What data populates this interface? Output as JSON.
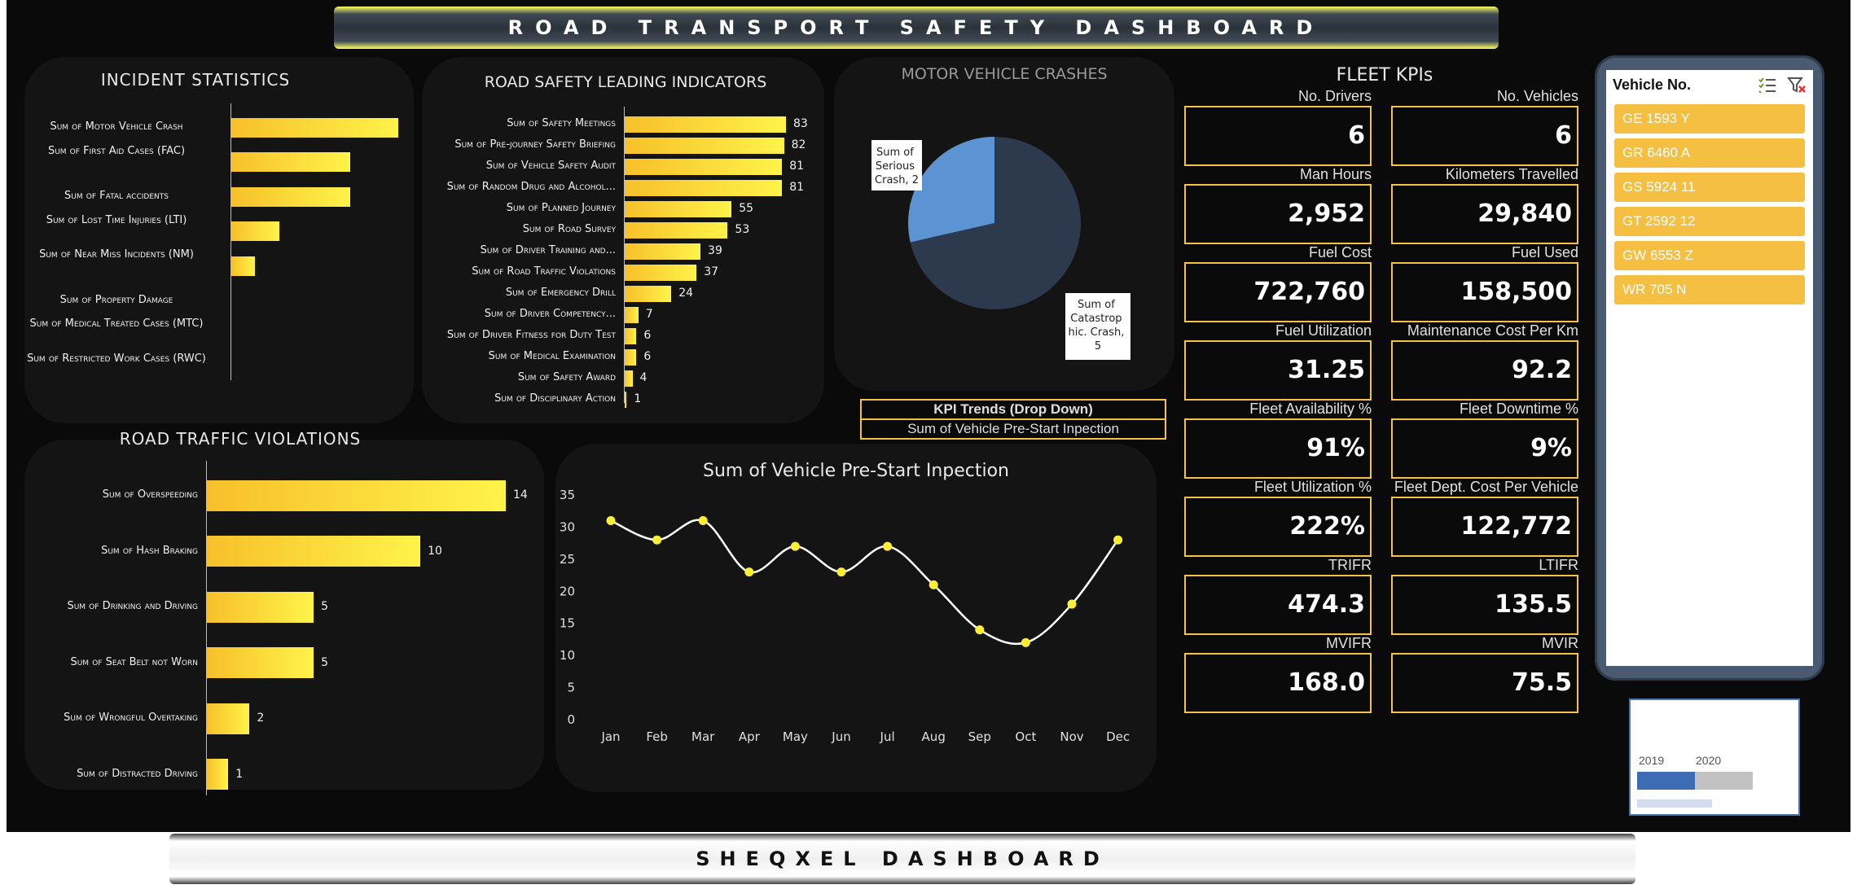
{
  "header": {
    "title": "ROAD TRANSPORT SAFETY DASHBOARD"
  },
  "footer": {
    "title": "SHEQXEL DASHBOARD"
  },
  "incident_statistics": {
    "title": "INCIDENT STATISTICS",
    "labels": [
      "Sum of Motor Vehicle Crash",
      "Sum of  First Aid Cases (FAC)",
      "Sum of Fatal accidents",
      "Sum of Lost Time Injuries  (LTI)",
      "Sum of Near Miss Incidents (NM)",
      "Sum of Property Damage",
      "Sum of Medical Treated Cases (MTC)",
      "Sum of Restricted Work Cases (RWC)"
    ],
    "values": [
      7,
      5,
      5,
      2,
      1,
      0,
      0,
      0
    ]
  },
  "leading_indicators": {
    "title": "ROAD SAFETY LEADING INDICATORS",
    "labels": [
      "Sum of Safety Meetings",
      "Sum of Pre-journey Safety Briefing",
      "Sum of Vehicle Safety Audit",
      "Sum of  Random Drug and Alcohol...",
      "Sum of  Planned Journey",
      "Sum of Road Survey",
      "Sum of Driver Training and...",
      "Sum of  Road Traffic Violations",
      "Sum of Emergency Drill",
      "Sum of Driver Competency...",
      "Sum of  Driver Fitness for Duty Test",
      "Sum of Medical Examination",
      "Sum of Safety Award",
      "Sum of Disciplinary Action"
    ],
    "values": [
      83,
      82,
      81,
      81,
      55,
      53,
      39,
      37,
      24,
      7,
      6,
      6,
      4,
      1
    ],
    "value_labels": [
      "83",
      "82",
      "81",
      "81",
      "55",
      "53",
      "39",
      "37",
      "24",
      "7",
      "6",
      "6",
      "4",
      "1"
    ]
  },
  "crashes": {
    "title": "MOTOR VEHICLE CRASHES",
    "slices": [
      {
        "label": "Sum of Serious Crash, 2",
        "value": 2,
        "color": "#5b93d3"
      },
      {
        "label": "Sum of Catastrophic Crash, 5",
        "value": 5,
        "color": "#2d3a4d"
      }
    ],
    "label_serious": [
      "Sum of",
      "Serious",
      "Crash, 2"
    ],
    "label_cat": [
      "Sum of",
      "Catastrop",
      "hic. Crash,",
      "5"
    ]
  },
  "kpi_trend": {
    "header": "KPI Trends (Drop Down)",
    "selected": "Sum of Vehicle Pre-Start Inpection"
  },
  "violations": {
    "title": "ROAD TRAFFIC VIOLATIONS",
    "labels": [
      "Sum of  Overspeeding",
      "Sum of  Hash Braking",
      "Sum of  Drinking and Driving",
      "Sum of  Seat Belt not Worn",
      "Sum of  Wrongful Overtaking",
      "Sum of  Distracted Driving"
    ],
    "values": [
      14,
      10,
      5,
      5,
      2,
      1
    ],
    "value_labels": [
      "14",
      "10",
      "5",
      "5",
      "2",
      "1"
    ]
  },
  "chart_data": {
    "type": "line",
    "title": "Sum of Vehicle Pre-Start Inpection",
    "categories": [
      "Jan",
      "Feb",
      "Mar",
      "Apr",
      "May",
      "Jun",
      "Jul",
      "Aug",
      "Sep",
      "Oct",
      "Nov",
      "Dec"
    ],
    "values": [
      31,
      28,
      31,
      23,
      27,
      23,
      27,
      21,
      14,
      12,
      18,
      28
    ],
    "ylim": [
      0,
      35
    ],
    "yticks": [
      "35",
      "30",
      "25",
      "20",
      "15",
      "10",
      "5",
      "0"
    ],
    "line_color": "#ffffff",
    "marker_color": "#ffee33"
  },
  "fleet": {
    "title": "FLEET KPIs",
    "kpis": [
      {
        "label": "No. Drivers",
        "value": "6"
      },
      {
        "label": "No. Vehicles",
        "value": "6"
      },
      {
        "label": "Man Hours",
        "value": "2,952"
      },
      {
        "label": "Kilometers Travelled",
        "value": "29,840"
      },
      {
        "label": "Fuel Cost",
        "value": "722,760"
      },
      {
        "label": "Fuel Used",
        "value": "158,500"
      },
      {
        "label": "Fuel Utilization",
        "value": "31.25"
      },
      {
        "label": "Maintenance Cost Per Km",
        "value": "92.2"
      },
      {
        "label": "Fleet Availability %",
        "value": "91%"
      },
      {
        "label": "Fleet Downtime %",
        "value": "9%"
      },
      {
        "label": "Fleet Utilization %",
        "value": "222%"
      },
      {
        "label": "Fleet Dept. Cost Per Vehicle",
        "value": "122,772"
      },
      {
        "label": "TRIFR",
        "value": "474.3"
      },
      {
        "label": "LTIFR",
        "value": "135.5"
      },
      {
        "label": "MVIFR",
        "value": "168.0"
      },
      {
        "label": "MVIR",
        "value": "75.5"
      }
    ]
  },
  "slicer": {
    "title": "Vehicle No.",
    "items": [
      "GE 1593 Y",
      "GR 6460 A",
      "GS 5924 11",
      "GT 2592 12",
      "GW 6553 Z",
      "WR 705 N"
    ],
    "multiselect_icon": "multi-select-icon",
    "clear_filter_icon": "clear-filter-icon"
  },
  "timeline": {
    "years": [
      "2019",
      "2020"
    ],
    "selected_fraction": 0.5
  }
}
